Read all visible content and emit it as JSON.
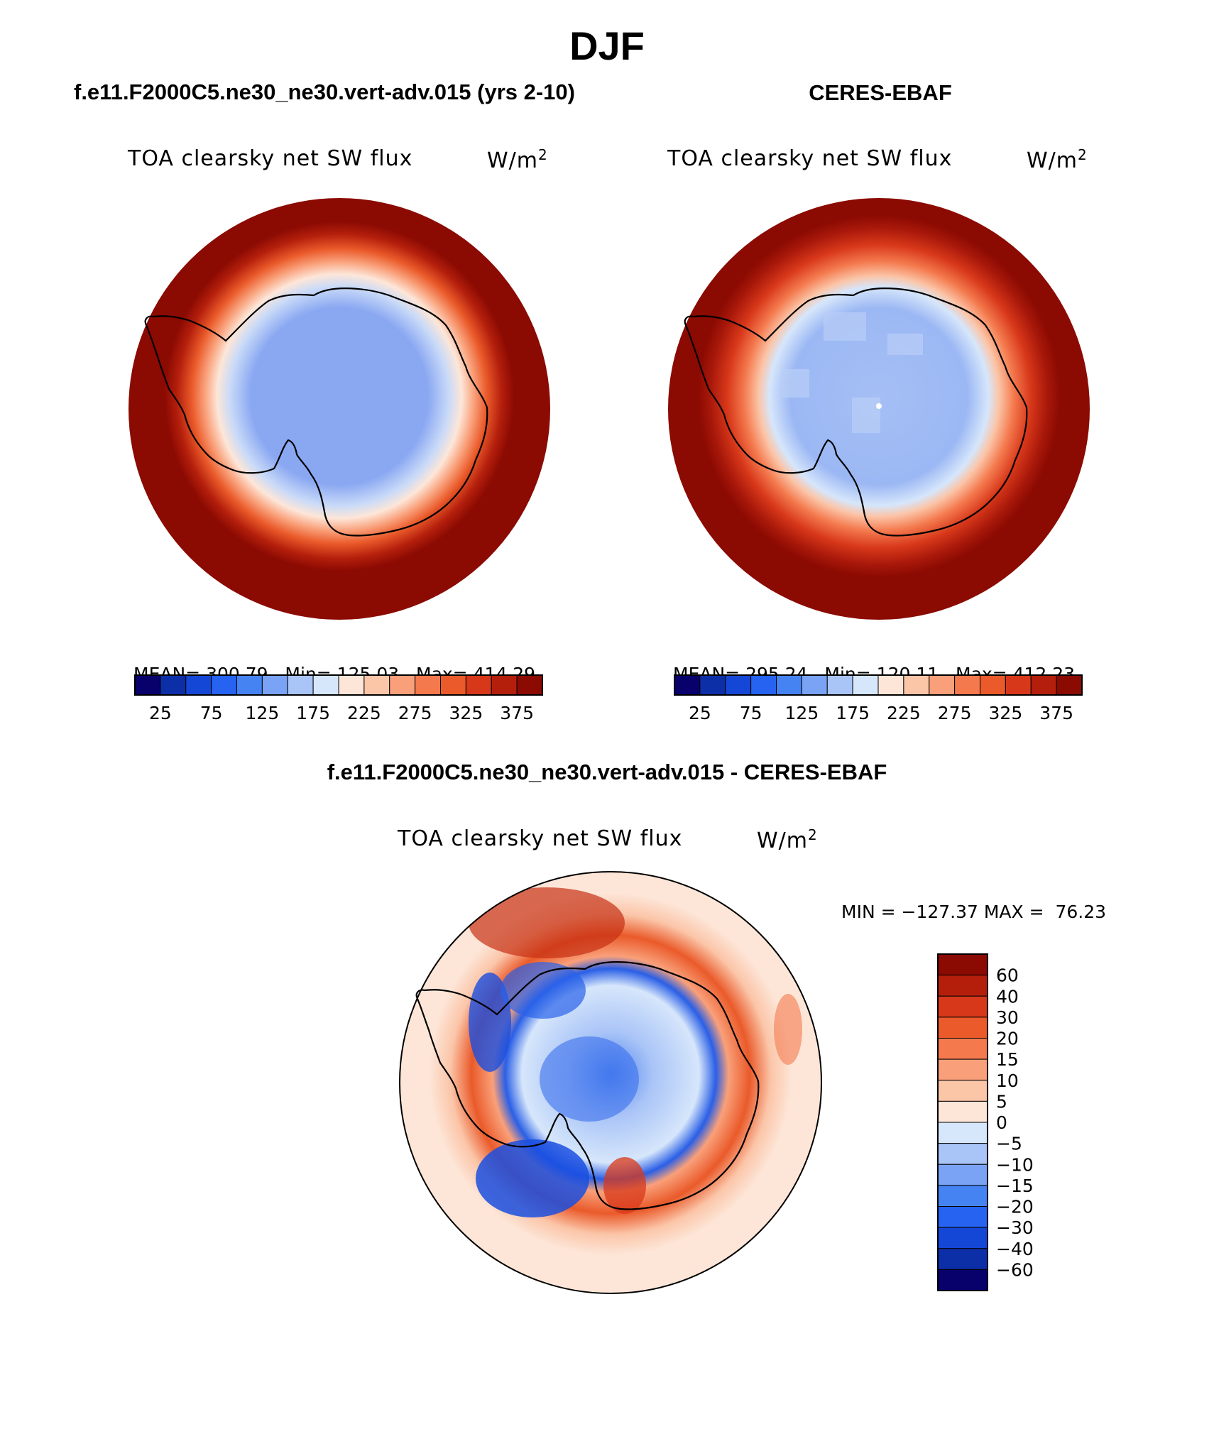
{
  "chart_data": [
    {
      "type": "heatmap",
      "title": "TOA clearsky net SW flux",
      "panel_label": "f.e11.F2000C5.ne30_ne30.vert-adv.015 (yrs 2-10)",
      "units": "W/m",
      "units_sup": "2",
      "projection": "south polar stereographic (circular)",
      "stats": {
        "mean_label": "MEAN=",
        "mean": "300.79",
        "min_label": "Min=",
        "min": "125.03",
        "max_label": "Max=",
        "max": "414.29"
      },
      "colorbar": {
        "levels": [
          25,
          50,
          75,
          100,
          125,
          150,
          175,
          200,
          225,
          250,
          275,
          300,
          325,
          350,
          375,
          400
        ],
        "tick_labels": [
          "25",
          "75",
          "125",
          "175",
          "225",
          "275",
          "325",
          "375"
        ],
        "colors": [
          "#08006b",
          "#0c2fa8",
          "#1547d6",
          "#2563f0",
          "#4683f2",
          "#7aa3f5",
          "#a9c4f7",
          "#d6e6fb",
          "#fde6d8",
          "#fbc5a8",
          "#f9a07a",
          "#f47a4e",
          "#ea5a2a",
          "#d8381a",
          "#b41f0c",
          "#8b0a02"
        ]
      }
    },
    {
      "type": "heatmap",
      "title": "TOA clearsky net SW flux",
      "panel_label": "CERES-EBAF",
      "units": "W/m",
      "units_sup": "2",
      "projection": "south polar stereographic (circular)",
      "stats": {
        "mean_label": "MEAN=",
        "mean": "295.24",
        "min_label": "Min=",
        "min": "120.11",
        "max_label": "Max=",
        "max": "412.23"
      },
      "colorbar": {
        "levels": [
          25,
          50,
          75,
          100,
          125,
          150,
          175,
          200,
          225,
          250,
          275,
          300,
          325,
          350,
          375,
          400
        ],
        "tick_labels": [
          "25",
          "75",
          "125",
          "175",
          "225",
          "275",
          "325",
          "375"
        ],
        "colors": [
          "#08006b",
          "#0c2fa8",
          "#1547d6",
          "#2563f0",
          "#4683f2",
          "#7aa3f5",
          "#a9c4f7",
          "#d6e6fb",
          "#fde6d8",
          "#fbc5a8",
          "#f9a07a",
          "#f47a4e",
          "#ea5a2a",
          "#d8381a",
          "#b41f0c",
          "#8b0a02"
        ]
      }
    },
    {
      "type": "heatmap",
      "title": "TOA clearsky net SW flux",
      "panel_label": "f.e11.F2000C5.ne30_ne30.vert-adv.015 - CERES-EBAF",
      "units": "W/m",
      "units_sup": "2",
      "projection": "south polar stereographic (circular)",
      "minmax_text": "MIN = −127.37 MAX =  76.23",
      "colorbar": {
        "orientation": "vertical",
        "tick_labels": [
          "60",
          "40",
          "30",
          "20",
          "15",
          "10",
          "5",
          "0",
          "−5",
          "−10",
          "−15",
          "−20",
          "−30",
          "−40",
          "−60"
        ],
        "colors": [
          "#8b0a02",
          "#b41f0c",
          "#d8381a",
          "#ea5a2a",
          "#f47a4e",
          "#f9a07a",
          "#fbc5a8",
          "#fde6d8",
          "#d6e6fb",
          "#a9c4f7",
          "#7aa3f5",
          "#4683f2",
          "#2563f0",
          "#1547d6",
          "#0c2fa8",
          "#08006b"
        ]
      }
    }
  ],
  "figure": {
    "season": "DJF"
  }
}
